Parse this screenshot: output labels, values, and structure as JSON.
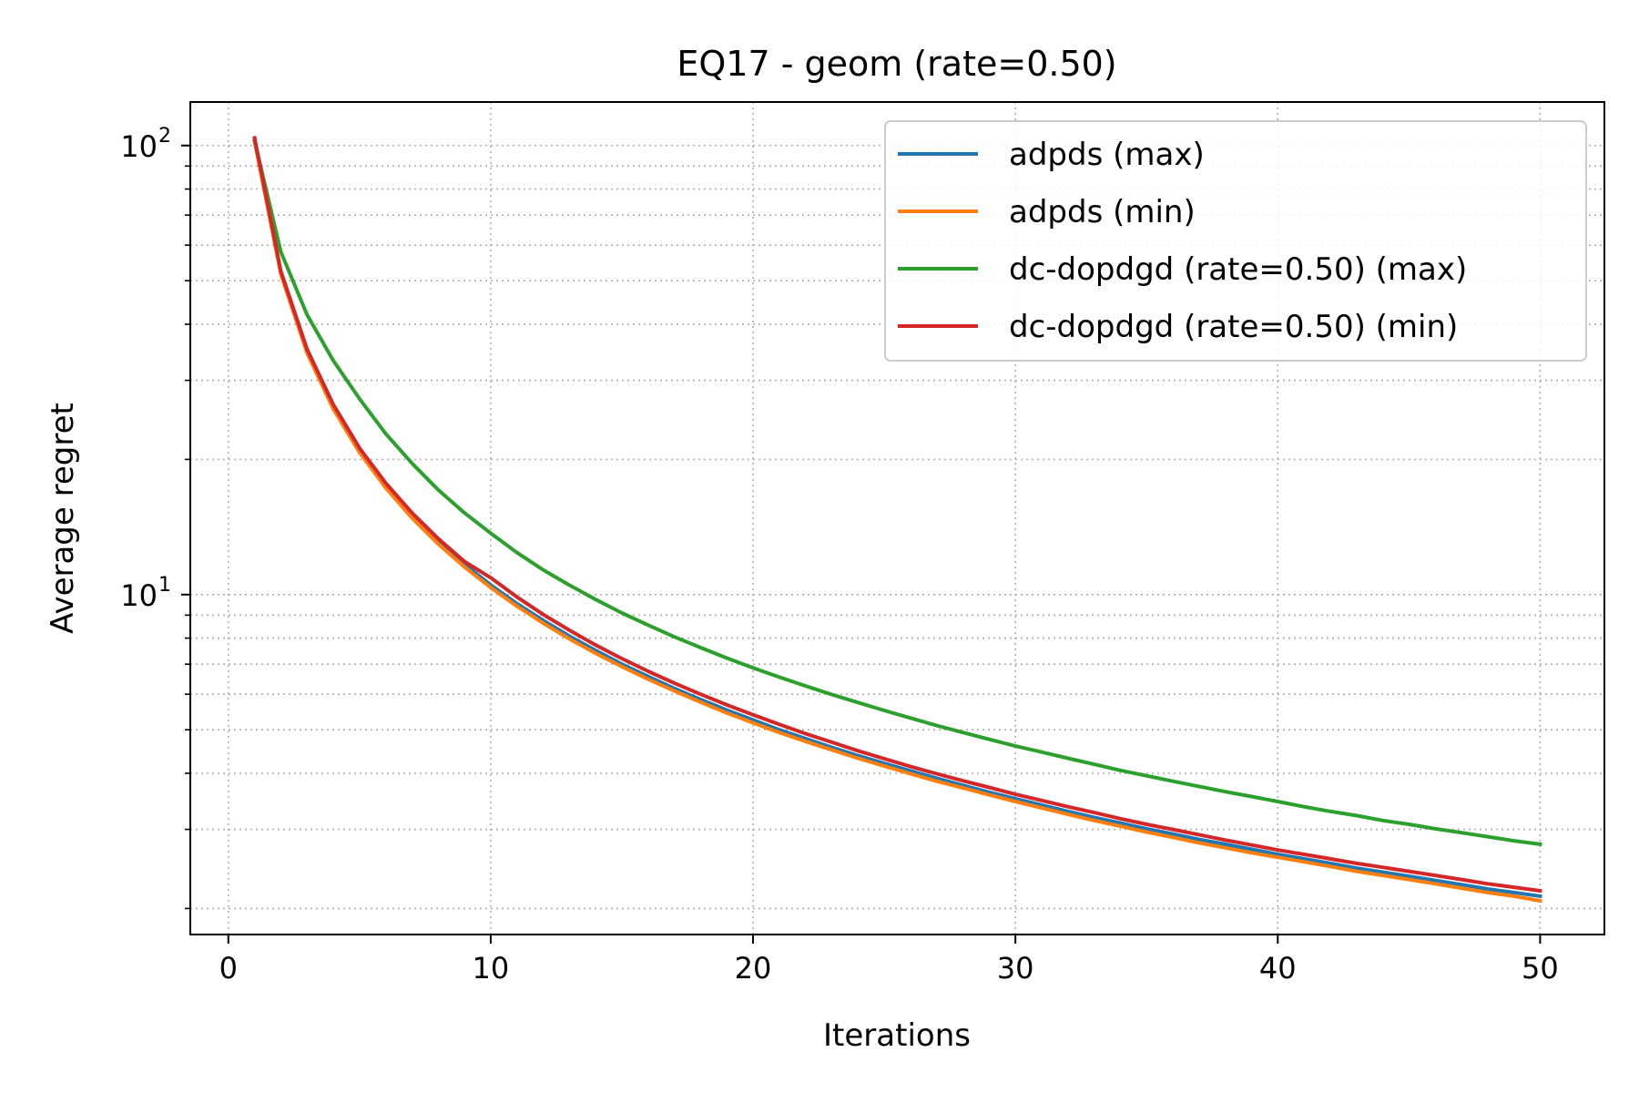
{
  "chart_data": {
    "type": "line",
    "title": "EQ17 - geom (rate=0.50)",
    "xlabel": "Iterations",
    "ylabel": "Average regret",
    "xlim": [
      -1.45,
      52.45
    ],
    "ylim": [
      1.75,
      125
    ],
    "yscale": "log",
    "x_ticks": [
      0,
      10,
      20,
      30,
      40,
      50
    ],
    "y_major_ticks": [
      10,
      100
    ],
    "y_major_labels": [
      {
        "base": "10",
        "exp": "1"
      },
      {
        "base": "10",
        "exp": "2"
      }
    ],
    "y_minor_ticks": [
      2,
      3,
      4,
      5,
      6,
      7,
      8,
      9,
      20,
      30,
      40,
      50,
      60,
      70,
      80,
      90
    ],
    "grid": true,
    "legend_position": "top-right",
    "x": [
      1,
      2,
      3,
      4,
      5,
      6,
      7,
      8,
      9,
      10,
      11,
      12,
      13,
      14,
      15,
      16,
      17,
      18,
      19,
      20,
      21,
      22,
      23,
      24,
      25,
      26,
      27,
      28,
      29,
      30,
      31,
      32,
      33,
      34,
      35,
      36,
      37,
      38,
      39,
      40,
      41,
      42,
      43,
      44,
      45,
      46,
      47,
      48,
      49,
      50
    ],
    "series": [
      {
        "name": "adpds (max)",
        "color": "#1f77b4",
        "values": [
          102.4,
          52.3,
          34.98,
          26.26,
          21.01,
          17.51,
          15.01,
          13.14,
          11.68,
          10.51,
          9.55,
          8.76,
          8.08,
          7.51,
          7.0,
          6.57,
          6.18,
          5.84,
          5.53,
          5.26,
          5.0,
          4.78,
          4.57,
          4.38,
          4.21,
          4.05,
          3.9,
          3.76,
          3.63,
          3.51,
          3.4,
          3.29,
          3.19,
          3.1,
          3.01,
          2.93,
          2.85,
          2.78,
          2.71,
          2.64,
          2.58,
          2.52,
          2.46,
          2.41,
          2.36,
          2.31,
          2.26,
          2.21,
          2.17,
          2.13
        ]
      },
      {
        "name": "adpds (min)",
        "color": "#ff7f0e",
        "values": [
          102.4,
          51.7,
          34.53,
          25.91,
          20.73,
          17.28,
          14.81,
          12.96,
          11.52,
          10.37,
          9.42,
          8.64,
          7.97,
          7.4,
          6.91,
          6.48,
          6.1,
          5.76,
          5.45,
          5.18,
          4.93,
          4.71,
          4.51,
          4.32,
          4.15,
          3.99,
          3.84,
          3.71,
          3.58,
          3.46,
          3.35,
          3.24,
          3.14,
          3.05,
          2.96,
          2.88,
          2.8,
          2.73,
          2.66,
          2.6,
          2.54,
          2.48,
          2.42,
          2.37,
          2.32,
          2.27,
          2.22,
          2.17,
          2.13,
          2.08
        ]
      },
      {
        "name": "dc-dopdgd (rate=0.50) (max)",
        "color": "#2ca02c",
        "values": [
          102.4,
          58.0,
          42.0,
          33.2,
          27.3,
          22.8,
          19.6,
          17.1,
          15.2,
          13.7,
          12.4,
          11.35,
          10.5,
          9.75,
          9.1,
          8.55,
          8.05,
          7.62,
          7.22,
          6.87,
          6.55,
          6.26,
          5.99,
          5.75,
          5.52,
          5.31,
          5.11,
          4.93,
          4.76,
          4.6,
          4.46,
          4.32,
          4.19,
          4.06,
          3.95,
          3.84,
          3.74,
          3.64,
          3.55,
          3.46,
          3.37,
          3.29,
          3.22,
          3.14,
          3.08,
          3.01,
          2.95,
          2.89,
          2.83,
          2.78
        ]
      },
      {
        "name": "dc-dopdgd (rate=0.50) (min)",
        "color": "#d62728",
        "values": [
          104.0,
          52.5,
          35.2,
          26.5,
          21.2,
          17.7,
          15.2,
          13.32,
          11.85,
          10.9,
          9.88,
          9.03,
          8.33,
          7.72,
          7.2,
          6.75,
          6.35,
          6.0,
          5.68,
          5.4,
          5.14,
          4.9,
          4.69,
          4.49,
          4.31,
          4.14,
          3.99,
          3.85,
          3.72,
          3.59,
          3.48,
          3.37,
          3.27,
          3.17,
          3.08,
          3.0,
          2.92,
          2.84,
          2.77,
          2.7,
          2.64,
          2.58,
          2.52,
          2.47,
          2.42,
          2.37,
          2.32,
          2.27,
          2.23,
          2.19
        ]
      }
    ]
  }
}
